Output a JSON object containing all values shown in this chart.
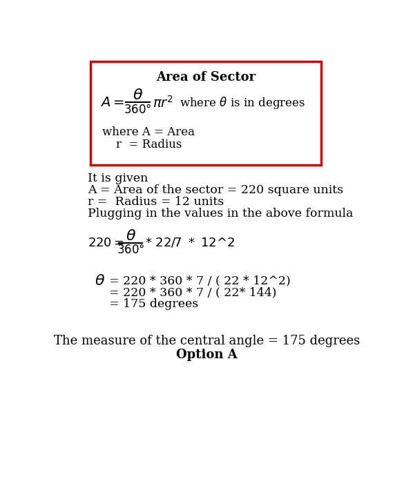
{
  "title": "Area of Sector",
  "box_color": "#cc0000",
  "bg_color": "#ffffff",
  "text_color": "#000000",
  "formula_box_title": "Area of Sector",
  "where_line1": "where A = Area",
  "where_line2": "r  = Radius",
  "given_lines": [
    "It is given",
    "A = Area of the sector = 220 square units",
    "r =  Radius = 12 units",
    "Plugging in the values in the above formula"
  ],
  "calc_lines": [
    "= 220 * 360 * 7 / ( 22 * 12^2)",
    "= 220 * 360 * 7 / ( 22* 144)",
    "= 175 degrees"
  ],
  "final_line1": "The measure of the central angle = 175 degrees",
  "final_line2": "Option A"
}
